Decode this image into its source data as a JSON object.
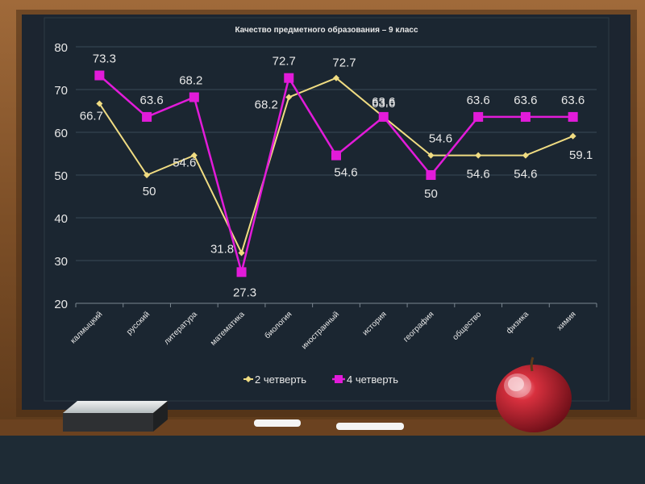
{
  "chart_data": {
    "type": "line",
    "title": "Качество предметного образования – 9 класс",
    "categories": [
      "калмыцкий",
      "русский",
      "литература",
      "математика",
      "биология",
      "иностранный",
      "история",
      "география",
      "общество",
      "физика",
      "химия"
    ],
    "series": [
      {
        "name": "2 четверть",
        "values": [
          66.7,
          50,
          54.6,
          31.8,
          68.2,
          72.7,
          63.6,
          54.6,
          54.6,
          54.6,
          59.1
        ],
        "labels": [
          "66.7",
          "50",
          "54.6",
          "31.8",
          "68.2",
          "72.7",
          "63.6",
          "54.6",
          "54.6",
          "54.6",
          "59.1"
        ],
        "color": "#f0dc82",
        "marker": "diamond"
      },
      {
        "name": "4 четверть",
        "values": [
          73.3,
          63.6,
          68.2,
          27.3,
          72.7,
          54.6,
          63.6,
          50,
          63.6,
          63.6,
          63.6
        ],
        "labels": [
          "73.3",
          "63.6",
          "68.2",
          "27.3",
          "72.7",
          "54.6",
          "63.6",
          "50",
          "63.6",
          "63.6",
          "63.6"
        ],
        "color": "#e21bd9",
        "marker": "square"
      }
    ],
    "yticks": [
      "20",
      "30",
      "40",
      "50",
      "60",
      "70",
      "80"
    ],
    "ylim": [
      20,
      80
    ],
    "grid": true,
    "legend": "bottom"
  },
  "colors": {
    "frame": "#8a5a2e",
    "board": "#1c2530",
    "grid": "#3a4a56",
    "label": "#e8e8e8"
  }
}
